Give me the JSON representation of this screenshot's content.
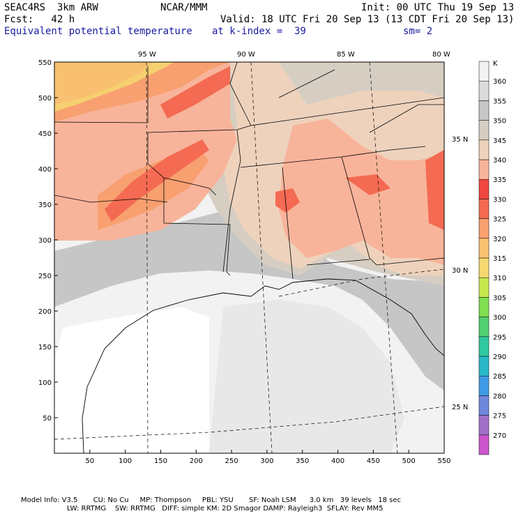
{
  "header": {
    "model": "SEAC4RS  3km ARW",
    "center": "NCAR/MMM",
    "init": "Init: 00 UTC Thu 19 Sep 13",
    "fcst": "Fcst:   42 h",
    "valid": "Valid: 18 UTC Fri 20 Sep 13 (13 CDT Fri 20 Sep 13)",
    "field": "Equivalent potential temperature",
    "level": "at k-index =  39",
    "smooth": "sm= 2"
  },
  "colors": {
    "title_blue": "#1a1aa0",
    "land_border": "#000000"
  },
  "x_ticks": [
    "50",
    "100",
    "150",
    "200",
    "250",
    "300",
    "350",
    "400",
    "450",
    "500",
    "550"
  ],
  "y_ticks": [
    "50",
    "100",
    "150",
    "200",
    "250",
    "300",
    "350",
    "400",
    "450",
    "500",
    "550"
  ],
  "lon_labels": [
    "95 W",
    "90 W",
    "85 W",
    "80 W"
  ],
  "lat_labels": [
    "35 N",
    "30 N",
    "25 N"
  ],
  "colorbar": {
    "unit": "K",
    "levels": [
      "270",
      "275",
      "280",
      "285",
      "290",
      "295",
      "300",
      "305",
      "310",
      "315",
      "320",
      "325",
      "330",
      "335",
      "340",
      "345",
      "350",
      "355",
      "360"
    ],
    "colors": [
      "#cc55cc",
      "#a070c8",
      "#6f88dc",
      "#3f9be6",
      "#2ab8c8",
      "#30c8a0",
      "#50d070",
      "#80de50",
      "#c8e850",
      "#f6d870",
      "#f8c070",
      "#f8a070",
      "#f46a52",
      "#f04840",
      "#f8b49a",
      "#eed2bc",
      "#d6cec2",
      "#c6c6c6",
      "#dcdcdc",
      "#f2f2f2"
    ]
  },
  "footer": {
    "line1": "Model Info: V3.5       CU: No Cu     MP: Thompson     PBL: YSU       SF: Noah LSM      3.0 km   39 levels   18 sec",
    "line2": "LW: RRTMG    SW: RRTMG   DIFF: simple KM: 2D Smagor DAMP: Rayleigh3  SFLAY: Rev MM5"
  }
}
